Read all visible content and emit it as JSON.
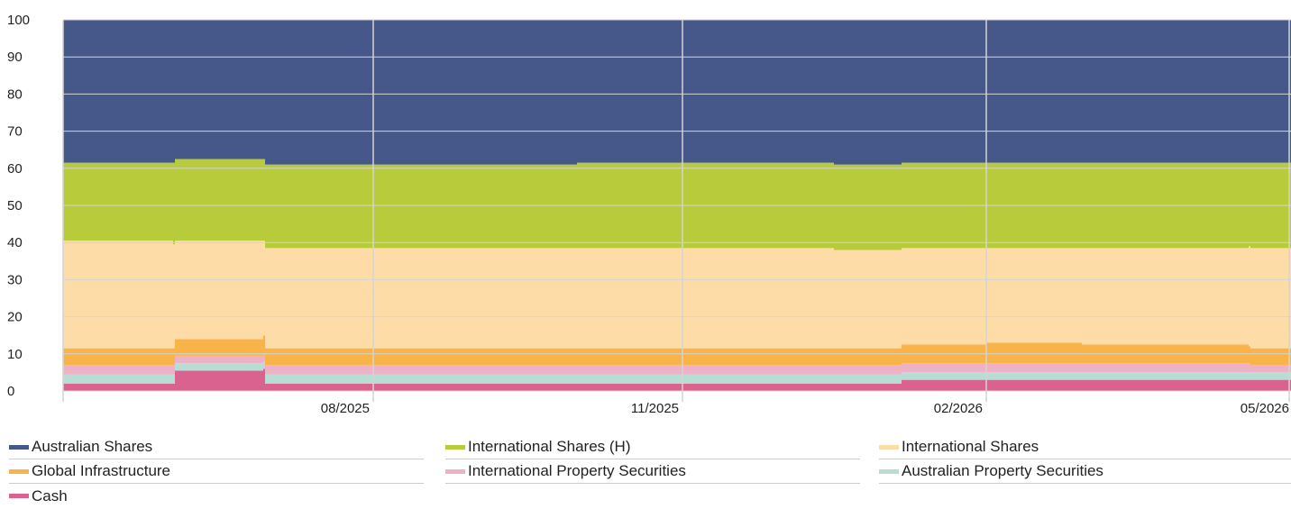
{
  "chart_data": {
    "type": "area",
    "stacked": true,
    "title": "",
    "xlabel": "",
    "ylabel": "",
    "ylim": [
      0,
      100
    ],
    "y_ticks": [
      0,
      10,
      20,
      30,
      40,
      50,
      60,
      70,
      80,
      90,
      100
    ],
    "x_tick_labels": [
      "08/2025",
      "11/2025",
      "02/2026",
      "05/2026"
    ],
    "grid": true,
    "legend_position": "bottom",
    "x": [
      "05/2025",
      "06/2025",
      "06/2025",
      "07/2025",
      "07/2025",
      "08/2025",
      "09/2025",
      "10/2025",
      "11/2025",
      "12/2025",
      "01/2026",
      "02/2026",
      "03/2026",
      "04/2026",
      "05/2026",
      "05/2026"
    ],
    "series": [
      {
        "name": "Cash",
        "color": "#d9628f",
        "values": [
          2.0,
          2.0,
          5.5,
          6.0,
          2.0,
          2.0,
          2.0,
          2.0,
          2.0,
          2.0,
          3.0,
          3.0,
          3.0,
          3.0,
          3.0,
          2.0
        ]
      },
      {
        "name": "Australian Property Securities",
        "color": "#b8ded4",
        "values": [
          2.5,
          2.5,
          2.0,
          2.0,
          2.5,
          2.5,
          2.5,
          2.5,
          2.5,
          2.5,
          2.0,
          2.0,
          2.0,
          2.0,
          2.0,
          2.0
        ]
      },
      {
        "name": "International Property Securities",
        "color": "#efb1c6",
        "values": [
          2.5,
          2.5,
          2.0,
          2.0,
          2.5,
          2.5,
          2.5,
          2.5,
          2.5,
          2.5,
          2.5,
          2.5,
          2.5,
          2.5,
          2.0,
          2.0
        ]
      },
      {
        "name": "Global Infrastructure",
        "color": "#f9b449",
        "values": [
          4.5,
          4.5,
          4.5,
          5.0,
          4.5,
          4.5,
          4.5,
          4.5,
          4.5,
          4.5,
          5.0,
          5.5,
          5.0,
          4.5,
          4.5,
          5.0
        ]
      },
      {
        "name": "International Shares",
        "color": "#fddca8",
        "values": [
          29.0,
          28.0,
          26.5,
          25.5,
          27.0,
          27.0,
          27.0,
          27.0,
          27.0,
          26.5,
          26.0,
          25.5,
          26.0,
          27.0,
          27.0,
          27.0
        ]
      },
      {
        "name": "International Shares (H)",
        "color": "#b8cb3b",
        "values": [
          21.0,
          22.0,
          22.0,
          22.0,
          22.5,
          22.5,
          22.5,
          23.0,
          23.0,
          23.0,
          23.0,
          23.0,
          23.0,
          22.5,
          23.0,
          23.5
        ]
      },
      {
        "name": "Australian Shares",
        "color": "#465789",
        "values": [
          38.5,
          38.5,
          37.5,
          37.5,
          39.0,
          39.0,
          39.0,
          38.5,
          38.5,
          39.0,
          38.5,
          38.5,
          38.5,
          38.5,
          38.5,
          38.5
        ]
      }
    ]
  },
  "legend": [
    {
      "label": "Australian Shares",
      "color": "#465789"
    },
    {
      "label": "International Shares (H)",
      "color": "#b8cb3b"
    },
    {
      "label": "International Shares",
      "color": "#fddca8"
    },
    {
      "label": "Global Infrastructure",
      "color": "#f9b449"
    },
    {
      "label": "International Property Securities",
      "color": "#efb1c6"
    },
    {
      "label": "Australian Property Securities",
      "color": "#b8ded4"
    },
    {
      "label": "Cash",
      "color": "#d9628f"
    }
  ]
}
